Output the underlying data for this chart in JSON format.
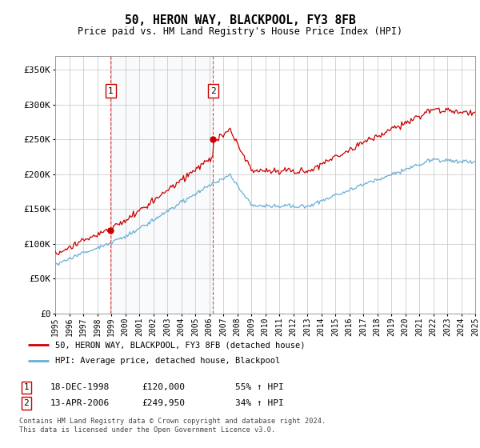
{
  "title": "50, HERON WAY, BLACKPOOL, FY3 8FB",
  "subtitle": "Price paid vs. HM Land Registry's House Price Index (HPI)",
  "ylim": [
    0,
    370000
  ],
  "yticks": [
    0,
    50000,
    100000,
    150000,
    200000,
    250000,
    300000,
    350000
  ],
  "ytick_labels": [
    "£0",
    "£50K",
    "£100K",
    "£150K",
    "£200K",
    "£250K",
    "£300K",
    "£350K"
  ],
  "hpi_color": "#6baed6",
  "price_color": "#cc0000",
  "sale1_date": 1998.96,
  "sale1_price": 120000,
  "sale2_date": 2006.28,
  "sale2_price": 249950,
  "legend_line1": "50, HERON WAY, BLACKPOOL, FY3 8FB (detached house)",
  "legend_line2": "HPI: Average price, detached house, Blackpool",
  "table_row1_num": "1",
  "table_row1_date": "18-DEC-1998",
  "table_row1_price": "£120,000",
  "table_row1_hpi": "55% ↑ HPI",
  "table_row2_num": "2",
  "table_row2_date": "13-APR-2006",
  "table_row2_price": "£249,950",
  "table_row2_hpi": "34% ↑ HPI",
  "footnote1": "Contains HM Land Registry data © Crown copyright and database right 2024.",
  "footnote2": "This data is licensed under the Open Government Licence v3.0.",
  "background_color": "#ffffff",
  "grid_color": "#cccccc",
  "shade_color": "#dce6f1"
}
